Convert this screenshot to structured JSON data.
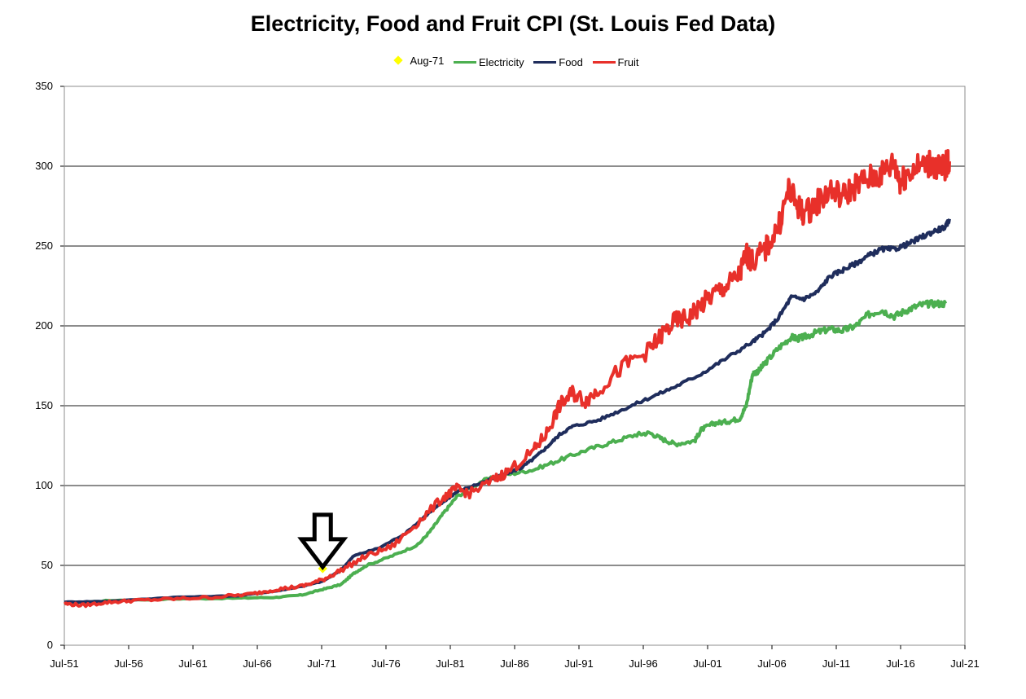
{
  "chart_data": {
    "type": "line",
    "title": "Electricity, Food and Fruit CPI (St. Louis Fed Data)",
    "xlabel": "",
    "ylabel": "",
    "ylim": [
      0,
      350
    ],
    "yticks": [
      0,
      50,
      100,
      150,
      200,
      250,
      300,
      350
    ],
    "xticks": [
      "Jul-51",
      "Jul-56",
      "Jul-61",
      "Jul-66",
      "Jul-71",
      "Jul-76",
      "Jul-81",
      "Jul-86",
      "Jul-91",
      "Jul-96",
      "Jul-01",
      "Jul-06",
      "Jul-11",
      "Jul-16",
      "Jul-21"
    ],
    "xtick_years": [
      1951.5,
      1956.5,
      1961.5,
      1966.5,
      1971.5,
      1976.5,
      1981.5,
      1986.5,
      1991.5,
      1996.5,
      2001.5,
      2006.5,
      2011.5,
      2016.5,
      2021.5
    ],
    "xlim": [
      1951.5,
      2021.5
    ],
    "grid": "horizontal",
    "legend_position": "top",
    "marker": {
      "name": "Aug-71",
      "x": 1971.58,
      "y": 48,
      "color": "#ffff00"
    },
    "annotation": {
      "type": "arrow-down",
      "x": 1971.58
    },
    "series": [
      {
        "name": "Electricity",
        "color": "#4caf50",
        "x": [
          1951.5,
          1955,
          1960,
          1965,
          1968,
          1970,
          1971.58,
          1973,
          1974,
          1975,
          1977,
          1979,
          1980,
          1981,
          1982,
          1984,
          1986,
          1988,
          1990,
          1992,
          1994,
          1996,
          1997,
          1998,
          1999,
          2000.5,
          2001,
          2002,
          2003,
          2004,
          2004.5,
          2005,
          2005.5,
          2006,
          2007,
          2008,
          2008.5,
          2009,
          2010,
          2011,
          2012,
          2013,
          2014,
          2015,
          2016,
          2017,
          2018,
          2019,
          2020
        ],
        "y": [
          26,
          28,
          29,
          29.5,
          30,
          31.5,
          35,
          38,
          45,
          50,
          56,
          63,
          72,
          83,
          93,
          103,
          107,
          110,
          116,
          122,
          127,
          132,
          133,
          129,
          126,
          128,
          135,
          139,
          140,
          142,
          150,
          170,
          172,
          177,
          186,
          193,
          192,
          193,
          196,
          198,
          197,
          200,
          207,
          210,
          206,
          210,
          213,
          214,
          214
        ]
      },
      {
        "name": "Food",
        "color": "#1f2d5c",
        "x": [
          1951.5,
          1955,
          1960,
          1965,
          1968,
          1970,
          1971.58,
          1973,
          1974,
          1976,
          1978,
          1980,
          1981,
          1982,
          1984,
          1986,
          1987,
          1988,
          1989,
          1990,
          1991,
          1993,
          1995,
          1997,
          1999,
          2001,
          2003,
          2005,
          2006,
          2007,
          2008,
          2009,
          2010,
          2011,
          2012,
          2013,
          2014,
          2015,
          2016,
          2017,
          2018,
          2019,
          2020,
          2020.3
        ],
        "y": [
          27,
          27.5,
          30,
          31,
          34,
          37,
          40,
          47,
          56,
          61,
          70,
          84,
          90,
          96,
          102,
          108,
          111,
          117,
          124,
          132,
          137,
          141,
          148,
          155,
          162,
          170,
          180,
          190,
          196,
          205,
          218,
          217,
          221,
          231,
          235,
          239,
          244,
          248,
          248,
          251,
          255,
          259,
          262,
          267
        ]
      },
      {
        "name": "Fruit",
        "color": "#e8302a",
        "x": [
          1951.5,
          1953,
          1955,
          1957,
          1960,
          1963,
          1966,
          1968,
          1970,
          1971.58,
          1973,
          1975,
          1977,
          1979,
          1981,
          1982,
          1983,
          1985,
          1986,
          1988,
          1989,
          1990,
          1991,
          1992,
          1993,
          1995,
          1997,
          1998,
          1999,
          2000,
          2001,
          2002,
          2003,
          2004,
          2004.5,
          2005,
          2006,
          2007,
          2007.8,
          2008.5,
          2009,
          2010,
          2011,
          2012,
          2013,
          2014,
          2015,
          2016,
          2016.5,
          2017,
          2018,
          2019,
          2019.5,
          2020,
          2020.3
        ],
        "y": [
          26,
          25,
          27,
          28,
          29,
          30,
          32,
          35,
          37,
          41,
          47,
          56,
          62,
          77,
          93,
          98,
          95,
          104,
          109,
          122,
          133,
          150,
          158,
          153,
          160,
          175,
          185,
          195,
          203,
          205,
          213,
          220,
          225,
          232,
          245,
          240,
          248,
          262,
          285,
          275,
          270,
          277,
          285,
          281,
          288,
          292,
          295,
          302,
          290,
          296,
          300,
          302,
          298,
          300,
          303
        ]
      }
    ]
  }
}
